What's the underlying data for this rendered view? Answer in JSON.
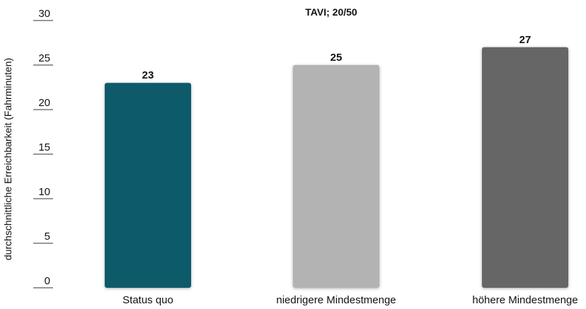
{
  "chart_data": {
    "type": "bar",
    "title": "TAVI; 20/50",
    "ylabel": "durchschnittliche Erreichbarkeit (Fahrminuten)",
    "xlabel": "",
    "categories": [
      "Status quo",
      "niedrigere Mindestmenge",
      "höhere Mindestmenge"
    ],
    "values": [
      23,
      25,
      27
    ],
    "value_labels": [
      "23",
      "25",
      "27"
    ],
    "bar_colors": [
      "#0d5a6a",
      "#b3b3b3",
      "#666666"
    ],
    "ylim": [
      0,
      30
    ],
    "yticks": [
      0,
      5,
      10,
      15,
      20,
      25,
      30
    ],
    "ytick_labels": [
      "0",
      "5",
      "10",
      "15",
      "20",
      "25",
      "30"
    ],
    "grid": false,
    "legend": "none"
  }
}
